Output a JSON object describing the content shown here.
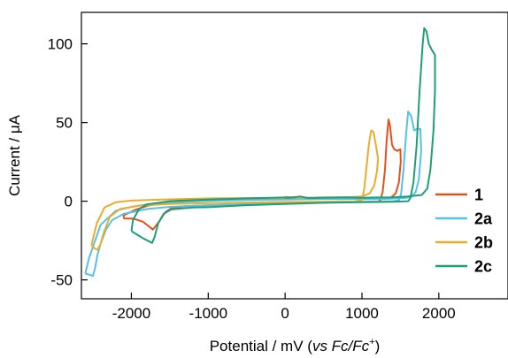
{
  "chart_data": {
    "type": "line",
    "xlabel_parts": {
      "prefix": "Potential / mV (",
      "vs": "vs",
      "space": " ",
      "fc1": "Fc/Fc",
      "sup": "+",
      "suffix": ")"
    },
    "ylabel": "Current / μA",
    "xlim": [
      -2650,
      2900
    ],
    "ylim": [
      -62,
      120
    ],
    "xticks": [
      -2000,
      -1000,
      0,
      1000,
      2000
    ],
    "yticks": [
      -50,
      0,
      50,
      100
    ],
    "grid": false,
    "legend_position": "right",
    "series": [
      {
        "name": "1",
        "color": "#e4521c",
        "points": [
          [
            -2100,
            -11
          ],
          [
            -1980,
            -11
          ],
          [
            -1850,
            -13
          ],
          [
            -1720,
            -18
          ],
          [
            -1640,
            -13
          ],
          [
            -1560,
            -7
          ],
          [
            -1480,
            -4.5
          ],
          [
            -1300,
            -3.2
          ],
          [
            -1000,
            -2.6
          ],
          [
            -500,
            -1.9
          ],
          [
            0,
            -1.3
          ],
          [
            500,
            -0.9
          ],
          [
            900,
            -0.5
          ],
          [
            1200,
            -0.3
          ],
          [
            1240,
            0.5
          ],
          [
            1270,
            6
          ],
          [
            1300,
            20
          ],
          [
            1320,
            38
          ],
          [
            1345,
            52
          ],
          [
            1365,
            48
          ],
          [
            1390,
            36
          ],
          [
            1420,
            33
          ],
          [
            1460,
            32
          ],
          [
            1500,
            33
          ],
          [
            1505,
            25
          ],
          [
            1480,
            12
          ],
          [
            1440,
            5
          ],
          [
            1380,
            2.5
          ],
          [
            1300,
            1.8
          ],
          [
            1000,
            1.5
          ],
          [
            700,
            1.4
          ],
          [
            500,
            1.8
          ],
          [
            420,
            2.2
          ],
          [
            300,
            1.5
          ],
          [
            100,
            1.8
          ],
          [
            0,
            1.8
          ],
          [
            -200,
            1.7
          ],
          [
            -500,
            1.6
          ],
          [
            -1000,
            1.2
          ],
          [
            -1400,
            0.4
          ],
          [
            -1600,
            -1
          ],
          [
            -1800,
            -3
          ],
          [
            -1950,
            -5.5
          ],
          [
            -2100,
            -9
          ],
          [
            -2100,
            -11
          ]
        ]
      },
      {
        "name": "2a",
        "color": "#56c1e8",
        "points": [
          [
            -2600,
            -46
          ],
          [
            -2560,
            -46.5
          ],
          [
            -2500,
            -47.5
          ],
          [
            -2470,
            -42
          ],
          [
            -2440,
            -34
          ],
          [
            -2400,
            -27
          ],
          [
            -2330,
            -18
          ],
          [
            -2250,
            -12
          ],
          [
            -2100,
            -8
          ],
          [
            -1800,
            -5
          ],
          [
            -1500,
            -3.6
          ],
          [
            -1000,
            -2.5
          ],
          [
            -500,
            -1.9
          ],
          [
            0,
            -1.3
          ],
          [
            500,
            -0.8
          ],
          [
            1000,
            -0.4
          ],
          [
            1400,
            -0.1
          ],
          [
            1480,
            0.5
          ],
          [
            1510,
            5
          ],
          [
            1540,
            20
          ],
          [
            1570,
            40
          ],
          [
            1600,
            57
          ],
          [
            1640,
            54
          ],
          [
            1680,
            45
          ],
          [
            1720,
            46
          ],
          [
            1760,
            46
          ],
          [
            1770,
            32
          ],
          [
            1740,
            14
          ],
          [
            1700,
            6
          ],
          [
            1650,
            3
          ],
          [
            1550,
            2
          ],
          [
            1300,
            1.5
          ],
          [
            1000,
            1.4
          ],
          [
            500,
            1.4
          ],
          [
            200,
            1.2
          ],
          [
            0,
            1
          ],
          [
            -500,
            0.8
          ],
          [
            -1000,
            0.2
          ],
          [
            -1500,
            -0.8
          ],
          [
            -1800,
            -2
          ],
          [
            -2000,
            -3.6
          ],
          [
            -2200,
            -6
          ],
          [
            -2400,
            -15
          ],
          [
            -2550,
            -36
          ],
          [
            -2600,
            -46
          ]
        ]
      },
      {
        "name": "2b",
        "color": "#ecac2b",
        "points": [
          [
            -2520,
            -28
          ],
          [
            -2480,
            -30
          ],
          [
            -2440,
            -31
          ],
          [
            -2400,
            -27
          ],
          [
            -2360,
            -20
          ],
          [
            -2280,
            -10
          ],
          [
            -2150,
            -5
          ],
          [
            -1900,
            -2.8
          ],
          [
            -1500,
            -1.8
          ],
          [
            -1000,
            -1.2
          ],
          [
            -500,
            -0.8
          ],
          [
            0,
            -0.5
          ],
          [
            500,
            -0.3
          ],
          [
            900,
            -0.2
          ],
          [
            1000,
            0.8
          ],
          [
            1030,
            8
          ],
          [
            1060,
            22
          ],
          [
            1090,
            36
          ],
          [
            1120,
            45
          ],
          [
            1150,
            44
          ],
          [
            1180,
            36
          ],
          [
            1210,
            27
          ],
          [
            1195,
            19
          ],
          [
            1160,
            10
          ],
          [
            1100,
            5
          ],
          [
            1000,
            3
          ],
          [
            800,
            2.5
          ],
          [
            500,
            2.5
          ],
          [
            200,
            2.2
          ],
          [
            0,
            2.7
          ],
          [
            -10,
            2
          ],
          [
            -500,
            2
          ],
          [
            -1000,
            1.8
          ],
          [
            -1500,
            1.2
          ],
          [
            -2000,
            0.4
          ],
          [
            -2200,
            -0.6
          ],
          [
            -2350,
            -4
          ],
          [
            -2450,
            -14
          ],
          [
            -2520,
            -28
          ]
        ]
      },
      {
        "name": "2c",
        "color": "#1f9e77",
        "points": [
          [
            -2000,
            -19
          ],
          [
            -1850,
            -23.5
          ],
          [
            -1730,
            -26.5
          ],
          [
            -1700,
            -23
          ],
          [
            -1650,
            -14
          ],
          [
            -1580,
            -8
          ],
          [
            -1480,
            -5.2
          ],
          [
            -1200,
            -4
          ],
          [
            -1000,
            -3.8
          ],
          [
            -500,
            -2.5
          ],
          [
            0,
            -1.7
          ],
          [
            500,
            -1
          ],
          [
            1000,
            -0.6
          ],
          [
            1400,
            -0.3
          ],
          [
            1600,
            0
          ],
          [
            1630,
            2
          ],
          [
            1670,
            12
          ],
          [
            1710,
            35
          ],
          [
            1750,
            70
          ],
          [
            1790,
            100
          ],
          [
            1810,
            110
          ],
          [
            1840,
            108
          ],
          [
            1870,
            100
          ],
          [
            1910,
            96
          ],
          [
            1950,
            93
          ],
          [
            1950,
            70
          ],
          [
            1930,
            45
          ],
          [
            1890,
            20
          ],
          [
            1850,
            8
          ],
          [
            1780,
            4
          ],
          [
            1600,
            3
          ],
          [
            1400,
            2.5
          ],
          [
            1200,
            2.4
          ],
          [
            1000,
            2.2
          ],
          [
            800,
            2.5
          ],
          [
            600,
            2.3
          ],
          [
            450,
            2.2
          ],
          [
            300,
            2
          ],
          [
            200,
            3
          ],
          [
            100,
            2.5
          ],
          [
            0,
            2.4
          ],
          [
            -500,
            1.8
          ],
          [
            -1000,
            1
          ],
          [
            -1500,
            0
          ],
          [
            -1800,
            -2
          ],
          [
            -1900,
            -5
          ],
          [
            -1980,
            -12
          ],
          [
            -2000,
            -19
          ]
        ]
      }
    ]
  }
}
